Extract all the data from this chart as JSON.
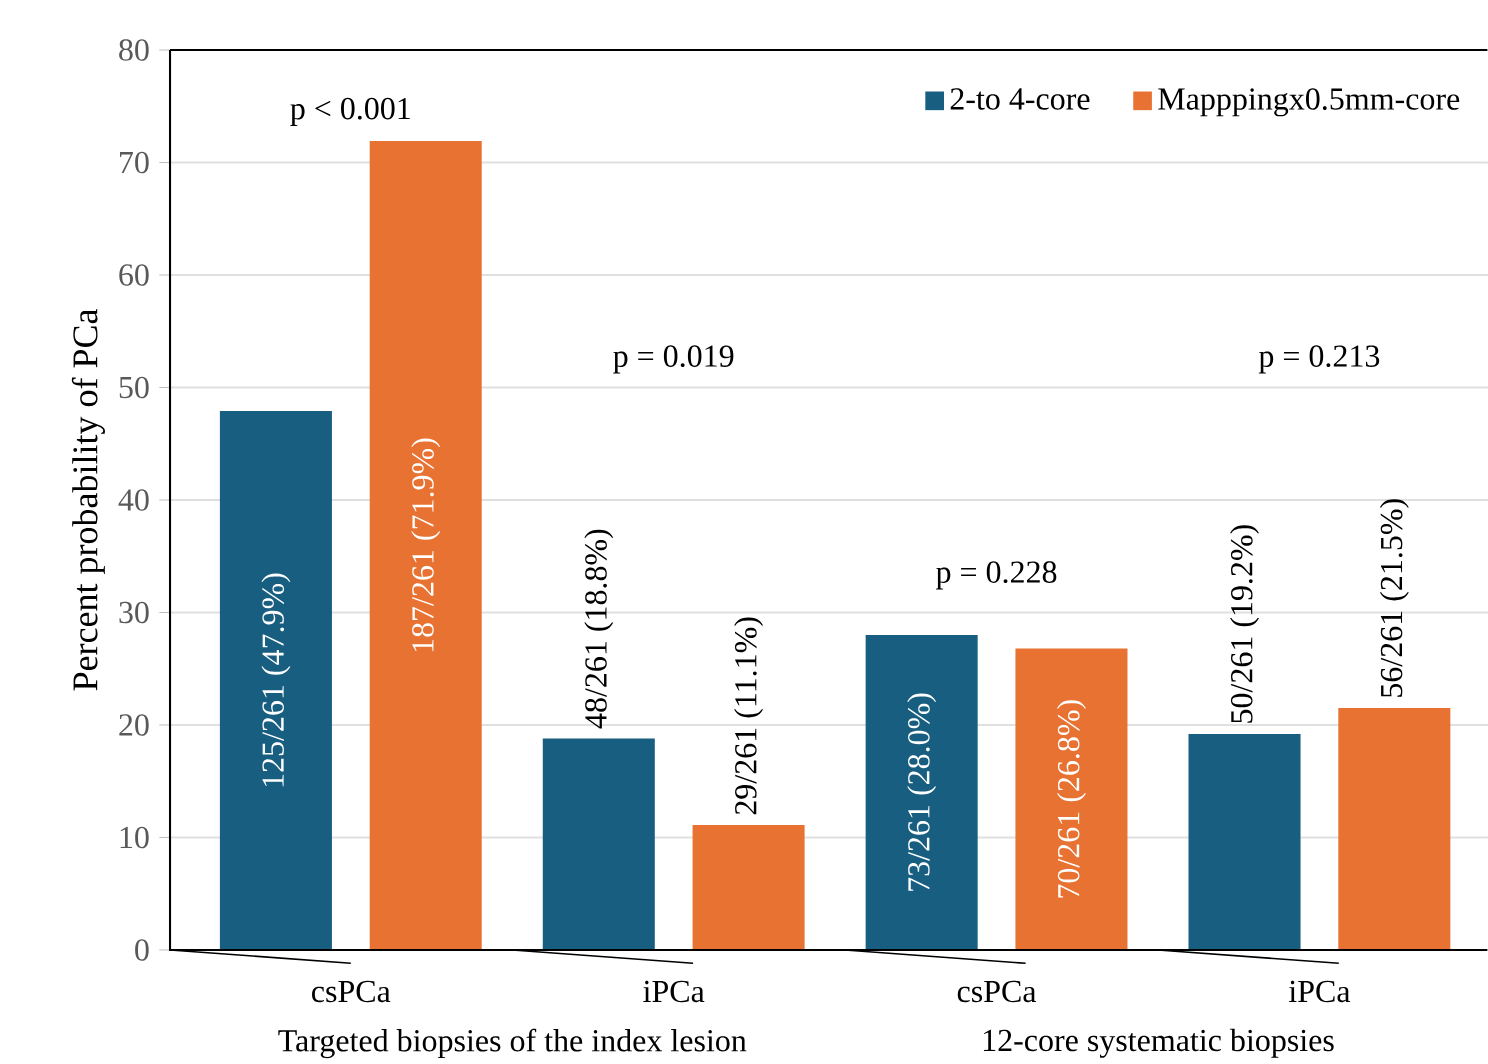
{
  "chart_data": {
    "type": "bar",
    "categories": [
      "csPCa",
      "iPCa",
      "csPCa",
      "iPCa"
    ],
    "series": [
      {
        "name": "2-to 4-core",
        "color": "#175e80",
        "values": [
          47.9,
          18.8,
          28.0,
          19.2
        ],
        "value_labels": [
          "125/261 (47.9%)",
          "48/261 (18.8%)",
          "73/261 (28.0%)",
          "50/261 (19.2%)"
        ]
      },
      {
        "name": "Mapppingx0.5mm-core",
        "color": "#e87232",
        "values": [
          71.9,
          11.1,
          26.8,
          21.5
        ],
        "value_labels": [
          "187/261 (71.9%)",
          "29/261 (11.1%)",
          "70/261 (26.8%)",
          "56/261 (21.5%)"
        ]
      }
    ],
    "ylabel": "Percent probability of PCa",
    "ylim": [
      0,
      80
    ],
    "yticks": [
      0,
      10,
      20,
      30,
      40,
      50,
      60,
      70,
      80
    ],
    "grid": "y",
    "legend": "top right",
    "annotations": [
      "p < 0.001",
      "p = 0.019",
      "p = 0.228",
      "p = 0.213",
      "Targeted biopsies of the index lesion",
      "12-core systematic biopsies"
    ]
  }
}
